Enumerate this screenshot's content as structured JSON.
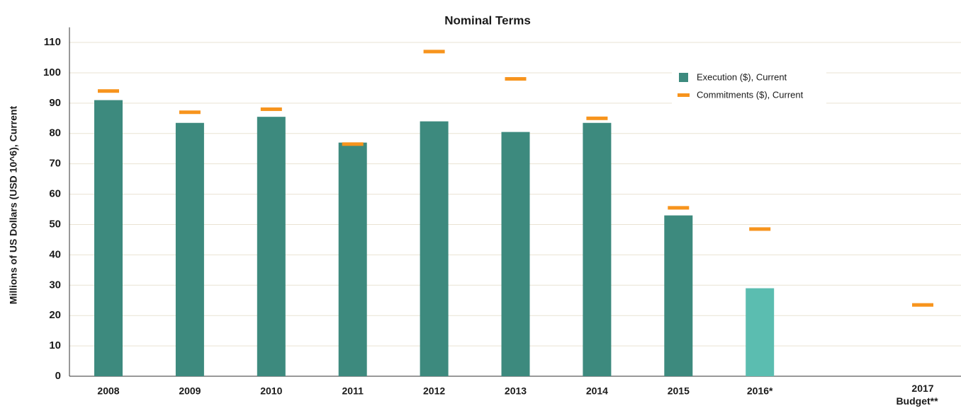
{
  "chart_data": {
    "type": "bar",
    "title": "Nominal Terms",
    "y_label": "Millions of US Dollars (USD 10^6), Current",
    "categories": [
      "2008",
      "2009",
      "2010",
      "2011",
      "2012",
      "2013",
      "2014",
      "2015",
      "2016*",
      null,
      "2017 Budget**"
    ],
    "series": [
      {
        "name": "Execution ($), Current",
        "color": "#3d8a7e",
        "colors": [
          "#3d8a7e",
          "#3d8a7e",
          "#3d8a7e",
          "#3d8a7e",
          "#3d8a7e",
          "#3d8a7e",
          "#3d8a7e",
          "#3d8a7e",
          "#5bbdb0",
          "#3d8a7e",
          "#3d8a7e"
        ],
        "values": [
          91,
          83.5,
          85.5,
          77,
          84,
          80.5,
          83.5,
          53,
          29,
          null,
          null
        ]
      },
      {
        "name": "Commitments ($), Current",
        "color": "#f7941d",
        "values": [
          94,
          87,
          88,
          76.5,
          107,
          98,
          85,
          55.5,
          48.5,
          null,
          23.5
        ]
      }
    ],
    "ylim": [
      0,
      115
    ],
    "yticks": [
      0,
      10,
      20,
      30,
      40,
      50,
      60,
      70,
      80,
      90,
      100,
      110
    ],
    "grid": true
  }
}
